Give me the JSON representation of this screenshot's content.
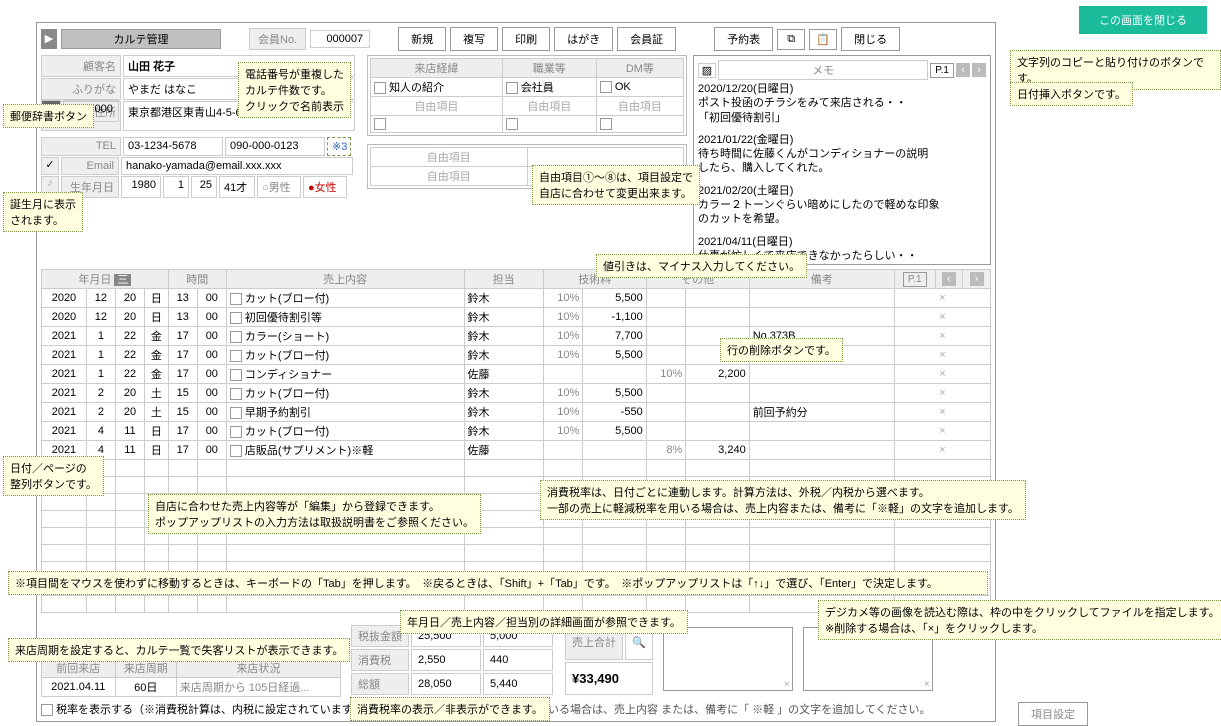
{
  "close_screen": "この画面を閉じる",
  "title": "カルテ管理",
  "member_no_label": "会員No.",
  "member_no": "000007",
  "topbtns": [
    "新規",
    "複写",
    "印刷",
    "はがき",
    "会員証"
  ],
  "rightbtns": [
    "予約表",
    "閉じる"
  ],
  "cust": {
    "name_lbl": "顧客名",
    "name": "山田 花子",
    "kana_lbl": "ふりがな",
    "kana": "やまだ はなこ",
    "addr_lbl": "住所",
    "addr": "東京都港区東青山4-5-6",
    "zip_lbl": "〒",
    "zip": "111-0000",
    "tel_lbl": "TEL",
    "tel1": "03-1234-5678",
    "tel2": "090-000-0123",
    "tel_ext": "※3",
    "email_lbl": "Email",
    "email": "hanako-yamada@email.xxx.xxx",
    "birth_lbl": "生年月日",
    "by": "1980",
    "bm": "1",
    "bd": "25",
    "age": "41才",
    "male": "○男性",
    "female": "●女性"
  },
  "route": {
    "h1": "来店経緯",
    "h2": "職業等",
    "h3": "DM等",
    "v1": "知人の紹介",
    "v2": "会社員",
    "v3": "OK",
    "free": "自由項目",
    "free_lbl": "自由項目"
  },
  "memo": {
    "head": "メモ",
    "page": "P.1",
    "items": [
      {
        "d": "2020/12/20(日曜日)",
        "t": "ポスト投函のチラシをみて来店される・・\n「初回優待割引」"
      },
      {
        "d": "2021/01/22(金曜日)",
        "t": "待ち時間に佐藤くんがコンディショナーの説明\nしたら、購入してくれた。"
      },
      {
        "d": "2021/02/20(土曜日)",
        "t": "カラー２トーンぐらい暗めにしたので軽めな印象\nのカットを希望。"
      },
      {
        "d": "2021/04/11(日曜日)",
        "t": "仕事が忙しくて来店できなかったらしい・・\n年度の切り替え事務が大変だったとのこと"
      }
    ]
  },
  "sales": {
    "hdr": {
      "ymd": "年月日",
      "yo": "三",
      "time": "時間",
      "content": "売上内容",
      "staff": "担当",
      "tech": "技術料",
      "other": "その他",
      "note": "備考",
      "page": "P.1"
    },
    "cols_y": "年",
    "cols_m": "月",
    "cols_d": "日",
    "rows": [
      {
        "y": "2020",
        "m": "12",
        "d": "20",
        "w": "日",
        "t": "13",
        "t2": "00",
        "c": "カット(ブロー付)",
        "s": "鈴木",
        "tp": "10%",
        "tv": "5,500",
        "op": "",
        "ov": "",
        "n": ""
      },
      {
        "y": "2020",
        "m": "12",
        "d": "20",
        "w": "日",
        "t": "13",
        "t2": "00",
        "c": "初回優待割引等",
        "s": "鈴木",
        "tp": "10%",
        "tv": "-1,100",
        "op": "",
        "ov": "",
        "n": ""
      },
      {
        "y": "2021",
        "m": "1",
        "d": "22",
        "w": "金",
        "t": "17",
        "t2": "00",
        "c": "カラー(ショート)",
        "s": "鈴木",
        "tp": "10%",
        "tv": "7,700",
        "op": "",
        "ov": "",
        "n": "No.373B"
      },
      {
        "y": "2021",
        "m": "1",
        "d": "22",
        "w": "金",
        "t": "17",
        "t2": "00",
        "c": "カット(ブロー付)",
        "s": "鈴木",
        "tp": "10%",
        "tv": "5,500",
        "op": "",
        "ov": "",
        "n": ""
      },
      {
        "y": "2021",
        "m": "1",
        "d": "22",
        "w": "金",
        "t": "17",
        "t2": "00",
        "c": "コンディショナー",
        "s": "佐藤",
        "tp": "",
        "tv": "",
        "op": "10%",
        "ov": "2,200",
        "n": ""
      },
      {
        "y": "2021",
        "m": "2",
        "d": "20",
        "w": "土",
        "t": "15",
        "t2": "00",
        "c": "カット(ブロー付)",
        "s": "鈴木",
        "tp": "10%",
        "tv": "5,500",
        "op": "",
        "ov": "",
        "n": ""
      },
      {
        "y": "2021",
        "m": "2",
        "d": "20",
        "w": "土",
        "t": "15",
        "t2": "00",
        "c": "早期予約割引",
        "s": "鈴木",
        "tp": "10%",
        "tv": "-550",
        "op": "",
        "ov": "",
        "n": "前回予約分"
      },
      {
        "y": "2021",
        "m": "4",
        "d": "11",
        "w": "日",
        "t": "17",
        "t2": "00",
        "c": "カット(ブロー付)",
        "s": "鈴木",
        "tp": "10%",
        "tv": "5,500",
        "op": "",
        "ov": "",
        "n": ""
      },
      {
        "y": "2021",
        "m": "4",
        "d": "11",
        "w": "日",
        "t": "17",
        "t2": "00",
        "c": "店販品(サプリメント)※軽",
        "s": "佐藤",
        "tp": "",
        "tv": "",
        "op": "8%",
        "ov": "3,240",
        "n": ""
      }
    ]
  },
  "footer": {
    "last_lbl": "前回来店",
    "cycle_lbl": "来店周期",
    "status_lbl": "来店状況",
    "last": "2021.04.11",
    "cycle": "60日",
    "status": "来店周期から 105日経過...",
    "tax_chk": "税率を表示する（※消費税計算は、内税に設定されています）",
    "totals": {
      "zeinuki_lbl": "税抜金額",
      "zeinuki_a": "25,500",
      "zeinuki_b": "5,000",
      "tax_lbl": "消費税",
      "tax_a": "2,550",
      "tax_b": "440",
      "total_lbl": "総額",
      "total_a": "28,050",
      "total_b": "5,440",
      "gtotal_lbl": "売上合計",
      "gtotal": "¥33,490"
    },
    "settings_btn": "項目設定"
  },
  "tips": {
    "postal": "郵便辞書ボタン",
    "birth": "誕生月に表示\nされます。",
    "tel": "電話番号が重複した\nカルテ件数です。\nクリックで名前表示",
    "copy": "文字列のコピーと貼り付けのボタンです。",
    "date": "日付挿入ボタンです。",
    "free": "自由項目①～⑧は、項目設定で\n自店に合わせて変更出来ます。",
    "neg": "値引きは、マイナス入力してください。",
    "sort": "日付／ページの\n整列ボタンです。",
    "del": "行の削除ボタンです。",
    "reg": "自店に合わせた売上内容等が「編集」から登録できます。\nポップアップリストの入力方法は取扱説明書をご参照ください。",
    "taxrate": "消費税率は、日付ごとに連動します。計算方法は、外税／内税から選べます。\n一部の売上に軽減税率を用いる場合は、売上内容または、備考に「※軽」の文字を追加します。",
    "kb": "※項目間をマウスを使わずに移動するときは、キーボードの「Tab」を押します。　※戻るときは、「Shift」+「Tab」です。　※ポップアップリストは「↑↓」で選び、「Enter」で決定します。",
    "cycle": "来店周期を設定すると、カルテ一覧で失客リストが表示できます。",
    "detail": "年月日／売上内容／担当別の詳細画面が参照できます。",
    "img": "デジカメ等の画像を読込む際は、枠の中をクリックしてファイルを指定します。\n※削除する場合は、「×」をクリックします。",
    "taxtoggle": "消費税率の表示／非表示ができます。",
    "footnote": "※一部の売上に軽減税率を用いる場合は、売上内容 または、備考に「 ※軽 」の文字を追加してください。"
  }
}
